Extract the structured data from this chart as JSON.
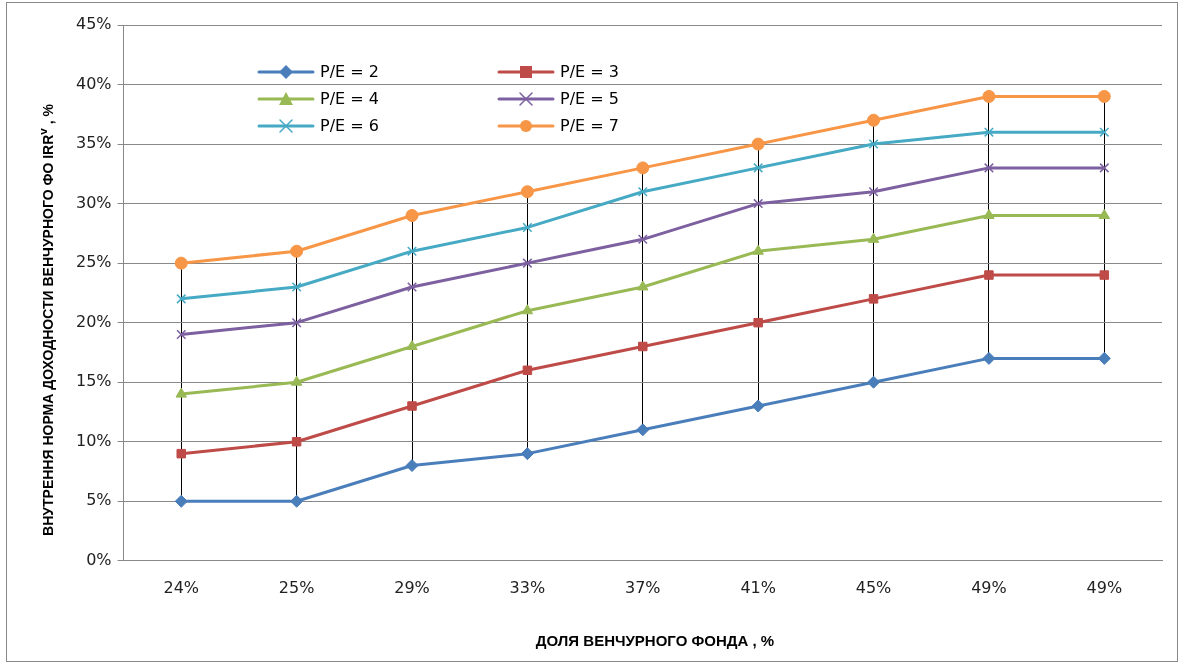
{
  "chart_data": {
    "type": "line",
    "xlabel": "ДОЛЯ ВЕНЧУРНОГО ФОНДА , %",
    "ylabel": "ВНУТРЕННЯ НОРМА ДОХОДНОСТИ ВЕНЧУРНОГО ФО IRR$^{v}$ , %",
    "categories": [
      "24%",
      "25%",
      "29%",
      "33%",
      "37%",
      "41%",
      "45%",
      "49%",
      "49%"
    ],
    "series": [
      {
        "name": "P/E = 2",
        "color": "#4a7ebb",
        "marker": "diamond",
        "values": [
          5,
          5,
          8,
          9,
          11,
          13,
          15,
          17,
          17
        ]
      },
      {
        "name": "P/E = 3",
        "color": "#be4b48",
        "marker": "square",
        "values": [
          9,
          10,
          13,
          16,
          18,
          20,
          22,
          24,
          24
        ]
      },
      {
        "name": "P/E = 4",
        "color": "#98b954",
        "marker": "triangle",
        "values": [
          14,
          15,
          18,
          21,
          23,
          26,
          27,
          29,
          29
        ]
      },
      {
        "name": "P/E = 5",
        "color": "#7d60a0",
        "marker": "cross",
        "values": [
          19,
          20,
          23,
          25,
          27,
          30,
          31,
          33,
          33
        ]
      },
      {
        "name": "P/E = 6",
        "color": "#46aac5",
        "marker": "cross",
        "values": [
          22,
          23,
          26,
          28,
          31,
          33,
          35,
          36,
          36
        ]
      },
      {
        "name": "P/E = 7",
        "color": "#f79646",
        "marker": "circle",
        "values": [
          25,
          26,
          29,
          31,
          33,
          35,
          37,
          39,
          39
        ]
      }
    ],
    "ylim": [
      0,
      45
    ],
    "yticks": [
      {
        "value": 0,
        "label": "0%"
      },
      {
        "value": 5,
        "label": "5%"
      },
      {
        "value": 10,
        "label": "10%"
      },
      {
        "value": 15,
        "label": "15%"
      },
      {
        "value": 20,
        "label": "20%"
      },
      {
        "value": 25,
        "label": "25%"
      },
      {
        "value": 30,
        "label": "30%"
      },
      {
        "value": 35,
        "label": "35%"
      },
      {
        "value": 40,
        "label": "40%"
      },
      {
        "value": 45,
        "label": "45%"
      }
    ],
    "grid": "y",
    "legend": "top left",
    "line_style": "solid"
  }
}
